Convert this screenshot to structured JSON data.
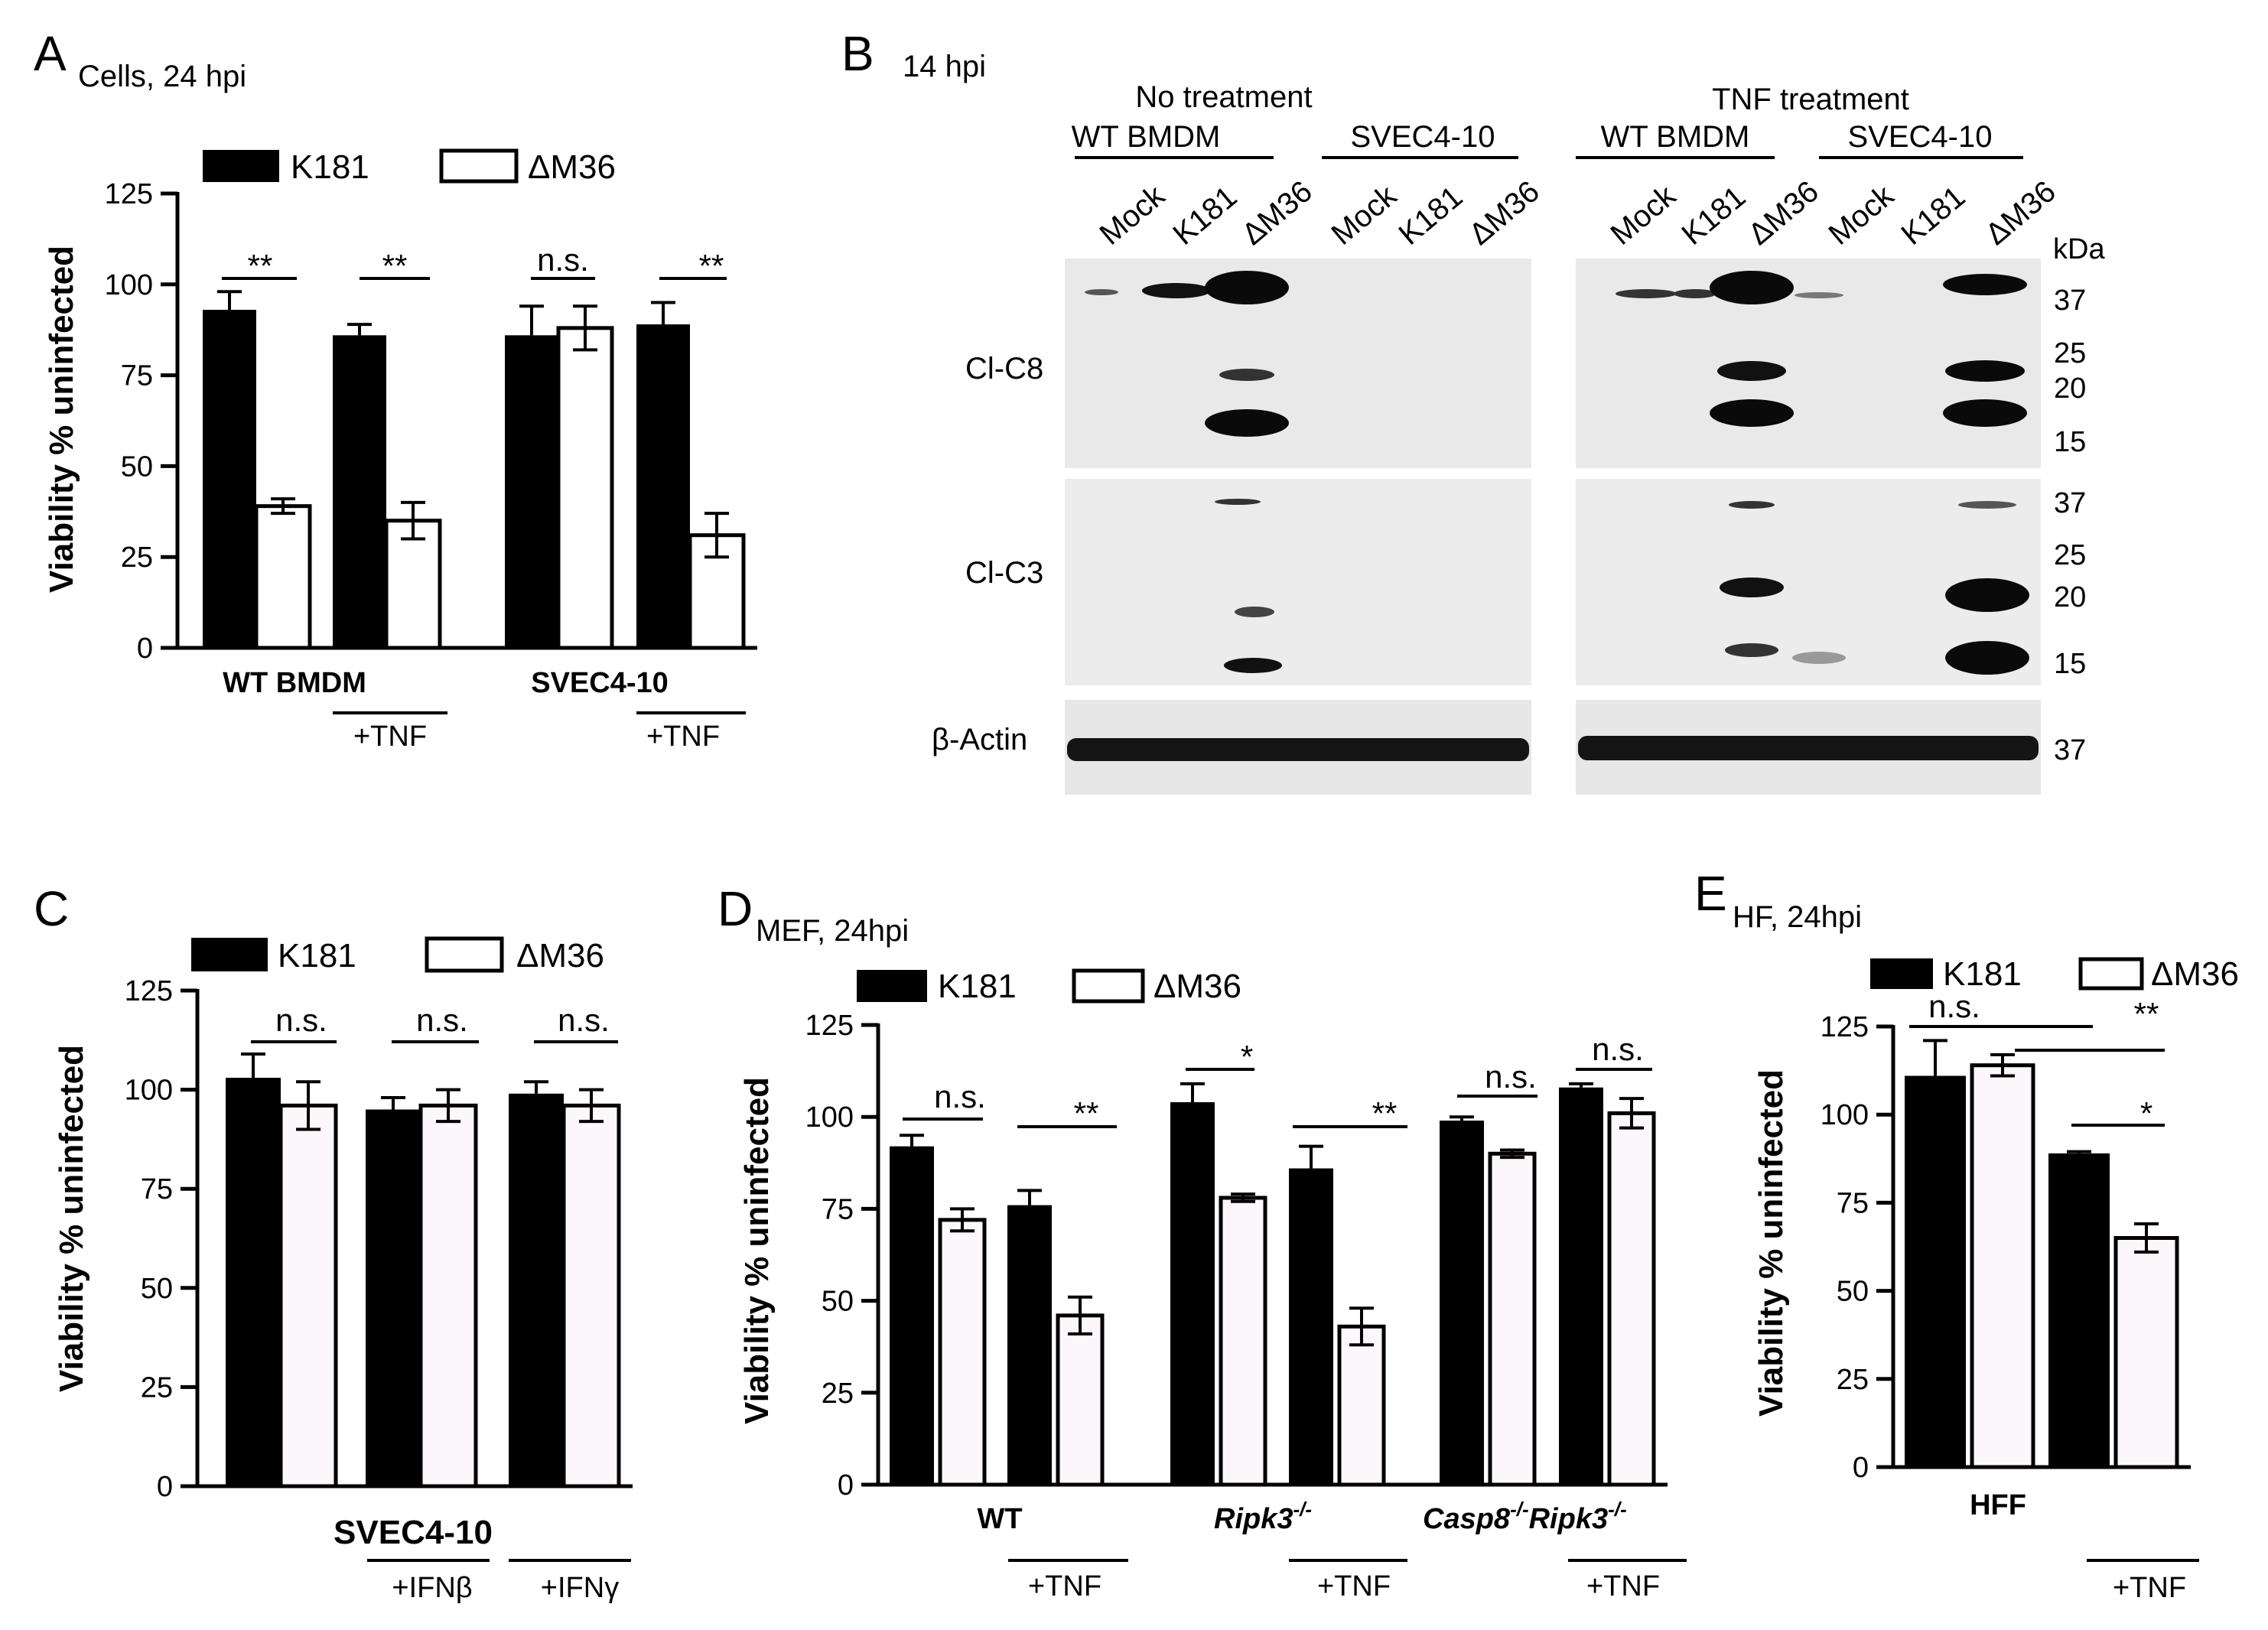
{
  "colors": {
    "k181": "#000000",
    "dm36": "#ffffff",
    "dm36_tint": "#fbf7fa",
    "blot_bg": "#e9e9e9",
    "band": "#0d0d0d"
  },
  "legend": {
    "k181": "K181",
    "dm36": "ΔM36"
  },
  "ytitle": "Viability % uninfected",
  "yticks": [
    "0",
    "25",
    "50",
    "75",
    "100",
    "125"
  ],
  "panels": {
    "A": {
      "letter": "A",
      "sub": "Cells, 24 hpi"
    },
    "B": {
      "letter": "B",
      "sub": "14 hpi"
    },
    "C": {
      "letter": "C",
      "sub": ""
    },
    "D": {
      "letter": "D",
      "sub": "MEF, 24hpi"
    },
    "E": {
      "letter": "E",
      "sub": "HF, 24hpi"
    }
  },
  "labelsA": {
    "g1": "WT BMDM",
    "g2": "SVEC4-10",
    "tnf1": "+TNF",
    "tnf2": "+TNF",
    "s1": "**",
    "s2": "**",
    "s3": "n.s.",
    "s4": "**"
  },
  "labelsC": {
    "g1": "SVEC4-10",
    "t1": "+IFNβ",
    "t2": "+IFNγ",
    "s1": "n.s.",
    "s2": "n.s.",
    "s3": "n.s."
  },
  "labelsD": {
    "g1": "WT",
    "g2a": "Ripk3",
    "g2s": "-/-",
    "g3a": "Casp8",
    "g3s": "-/-",
    "g3b": "Ripk3",
    "g3t": "-/-",
    "t1": "+TNF",
    "t2": "+TNF",
    "t3": "+TNF",
    "s1": "n.s.",
    "s2": "**",
    "s3": "*",
    "s4": "**",
    "s5": "n.s.",
    "s6": "n.s."
  },
  "labelsE": {
    "g1": "HFF",
    "t1": "+TNF",
    "s1": "n.s.",
    "s2": "**",
    "s3": "*"
  },
  "blot": {
    "header_left": "No treatment",
    "header_right": "TNF treatment",
    "groups": [
      "WT BMDM",
      "SVEC4-10",
      "WT BMDM",
      "SVEC4-10"
    ],
    "lanes": [
      "Mock",
      "K181",
      "ΔM36",
      "Mock",
      "K181",
      "ΔM36",
      "Mock",
      "K181",
      "ΔM36",
      "Mock",
      "K181",
      "ΔM36"
    ],
    "rows": [
      "Cl-C8",
      "Cl-C3",
      "β-Actin"
    ],
    "kda_title": "kDa",
    "kda_c8": [
      "37",
      "25",
      "20",
      "15"
    ],
    "kda_c3": [
      "37",
      "25",
      "20",
      "15"
    ],
    "kda_actin": [
      "37"
    ]
  },
  "chart_data": [
    {
      "panel": "A",
      "type": "bar",
      "title": "Cells, 24 hpi",
      "ylabel": "Viability % uninfected",
      "ylim": [
        0,
        125
      ],
      "categories": [
        "WT BMDM",
        "WT BMDM +TNF",
        "SVEC4-10",
        "SVEC4-10 +TNF"
      ],
      "series": [
        {
          "name": "K181",
          "values": [
            93,
            86,
            86,
            89
          ],
          "errors": [
            5,
            3,
            8,
            6
          ]
        },
        {
          "name": "ΔM36",
          "values": [
            39,
            35,
            88,
            31
          ],
          "errors": [
            2,
            5,
            6,
            6
          ]
        }
      ]
    },
    {
      "panel": "C",
      "type": "bar",
      "ylabel": "Viability % uninfected",
      "ylim": [
        0,
        125
      ],
      "categories": [
        "SVEC4-10",
        "SVEC4-10 +IFNβ",
        "SVEC4-10 +IFNγ"
      ],
      "series": [
        {
          "name": "K181",
          "values": [
            103,
            95,
            99
          ],
          "errors": [
            6,
            3,
            3
          ]
        },
        {
          "name": "ΔM36",
          "values": [
            96,
            96,
            96
          ],
          "errors": [
            6,
            4,
            4
          ]
        }
      ]
    },
    {
      "panel": "D",
      "type": "bar",
      "title": "MEF, 24hpi",
      "ylabel": "Viability % uninfected",
      "ylim": [
        0,
        125
      ],
      "categories": [
        "WT",
        "WT +TNF",
        "Ripk3-/-",
        "Ripk3-/- +TNF",
        "Casp8-/-Ripk3-/-",
        "Casp8-/-Ripk3-/- +TNF"
      ],
      "series": [
        {
          "name": "K181",
          "values": [
            92,
            76,
            104,
            86,
            99,
            108
          ],
          "errors": [
            3,
            4,
            5,
            6,
            1,
            1
          ]
        },
        {
          "name": "ΔM36",
          "values": [
            72,
            46,
            78,
            43,
            90,
            101
          ],
          "errors": [
            3,
            5,
            1,
            5,
            1,
            4
          ]
        }
      ]
    },
    {
      "panel": "E",
      "type": "bar",
      "title": "HF, 24hpi",
      "ylabel": "Viability % uninfected",
      "ylim": [
        0,
        125
      ],
      "categories": [
        "HFF",
        "HFF +TNF"
      ],
      "series": [
        {
          "name": "K181",
          "values": [
            111,
            89
          ],
          "errors": [
            10,
            0.5
          ]
        },
        {
          "name": "ΔM36",
          "values": [
            114,
            65
          ],
          "errors": [
            3,
            4
          ]
        }
      ]
    }
  ]
}
